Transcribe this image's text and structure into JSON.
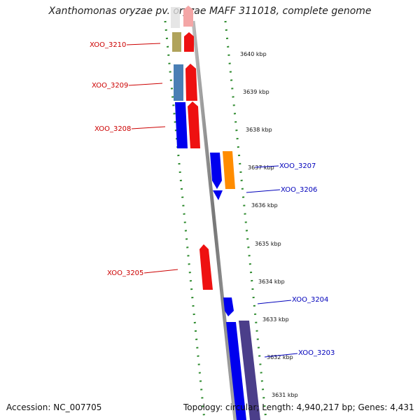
{
  "title": "Xanthomonas oryzae pv. oryzae MAFF 311018, complete genome",
  "accession": "Accession: NC_007705",
  "summary": "Topology: circular; Length: 4,940,217 bp; Genes: 4,431",
  "colors": {
    "left_gene_label": "#cc0000",
    "right_gene_label": "#0000bb",
    "ruler_dots": "#2e8b2e",
    "backbone": "#8a8a8a"
  },
  "ticks": [
    {
      "label": "3640 kbp"
    },
    {
      "label": "3639 kbp"
    },
    {
      "label": "3638 kbp"
    },
    {
      "label": "3637 kbp"
    },
    {
      "label": "3636 kbp"
    },
    {
      "label": "3635 kbp"
    },
    {
      "label": "3634 kbp"
    },
    {
      "label": "3633 kbp"
    },
    {
      "label": "3632 kbp"
    },
    {
      "label": "3631 kbp"
    }
  ],
  "gene_labels": [
    {
      "name": "XOO_3210",
      "side": "left"
    },
    {
      "name": "XOO_3209",
      "side": "left"
    },
    {
      "name": "XOO_3208",
      "side": "left"
    },
    {
      "name": "XOO_3207",
      "side": "right"
    },
    {
      "name": "XOO_3206",
      "side": "right"
    },
    {
      "name": "XOO_3205",
      "side": "left"
    },
    {
      "name": "XOO_3204",
      "side": "right"
    },
    {
      "name": "XOO_3203",
      "side": "right"
    }
  ]
}
